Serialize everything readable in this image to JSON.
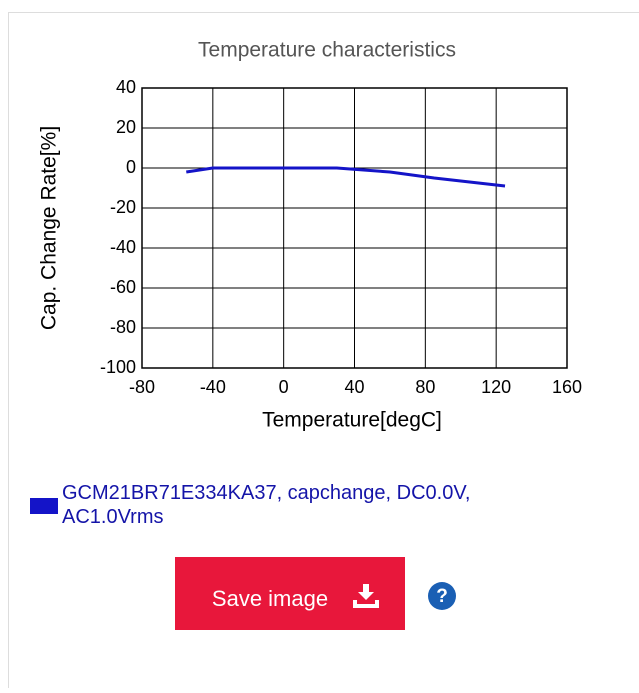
{
  "chart_data": {
    "type": "line",
    "title": "Temperature characteristics",
    "x_label": "Temperature[degC]",
    "y_label": "Cap. Change Rate[%]",
    "x": [
      -55,
      -40,
      0,
      30,
      60,
      85,
      105,
      125
    ],
    "series": [
      {
        "name": "GCM21BR71E334KA37, capchange, DC0.0V, AC1.0Vrms",
        "color": "#1414c8",
        "values": [
          -2,
          0,
          0,
          0,
          -2,
          -5,
          -7,
          -9
        ]
      }
    ],
    "xlim": [
      -80,
      160
    ],
    "xticks": [
      -80,
      -40,
      0,
      40,
      80,
      120,
      160
    ],
    "ylim": [
      -100,
      40
    ],
    "yticks": [
      -100,
      -80,
      -60,
      -40,
      -20,
      0,
      20,
      40
    ],
    "grid": true
  },
  "ui": {
    "button": "Save image",
    "help": "?"
  }
}
